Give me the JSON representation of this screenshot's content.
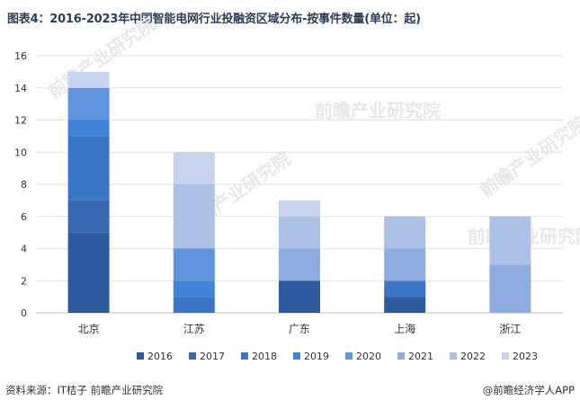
{
  "header": {
    "title": "图表4：2016-2023年中国智能电网行业投融资区域分布-按事件数量(单位：起)"
  },
  "footer": {
    "source": "资料来源：IT桔子 前瞻产业研究院",
    "credit": "@前瞻经济学人APP"
  },
  "watermark": {
    "text": "前瞻产业研究院"
  },
  "chart_data": {
    "type": "bar",
    "stacked": true,
    "title": "图表4：2016-2023年中国智能电网行业投融资区域分布-按事件数量(单位：起)",
    "xlabel": "",
    "ylabel": "",
    "categories": [
      "北京",
      "江苏",
      "广东",
      "上海",
      "浙江"
    ],
    "ylim": [
      0,
      16
    ],
    "yticks": [
      0,
      2,
      4,
      6,
      8,
      10,
      12,
      14,
      16
    ],
    "grid": true,
    "legend_position": "bottom",
    "series": [
      {
        "name": "2016",
        "color": "#2e5aa0",
        "values": [
          5,
          0,
          2,
          1,
          0
        ]
      },
      {
        "name": "2017",
        "color": "#3a68b0",
        "values": [
          2,
          0,
          0,
          0,
          0
        ]
      },
      {
        "name": "2018",
        "color": "#3b76c6",
        "values": [
          4,
          1,
          0,
          1,
          0
        ]
      },
      {
        "name": "2019",
        "color": "#3f84d8",
        "values": [
          1,
          1,
          0,
          0,
          0
        ]
      },
      {
        "name": "2020",
        "color": "#5e95de",
        "values": [
          2,
          2,
          0,
          0,
          0
        ]
      },
      {
        "name": "2021",
        "color": "#8eacdf",
        "values": [
          0,
          0,
          2,
          2,
          3
        ]
      },
      {
        "name": "2022",
        "color": "#adc1e6",
        "values": [
          0,
          4,
          2,
          2,
          3
        ]
      },
      {
        "name": "2023",
        "color": "#c8d4ee",
        "values": [
          1,
          2,
          1,
          0,
          0
        ]
      }
    ]
  }
}
